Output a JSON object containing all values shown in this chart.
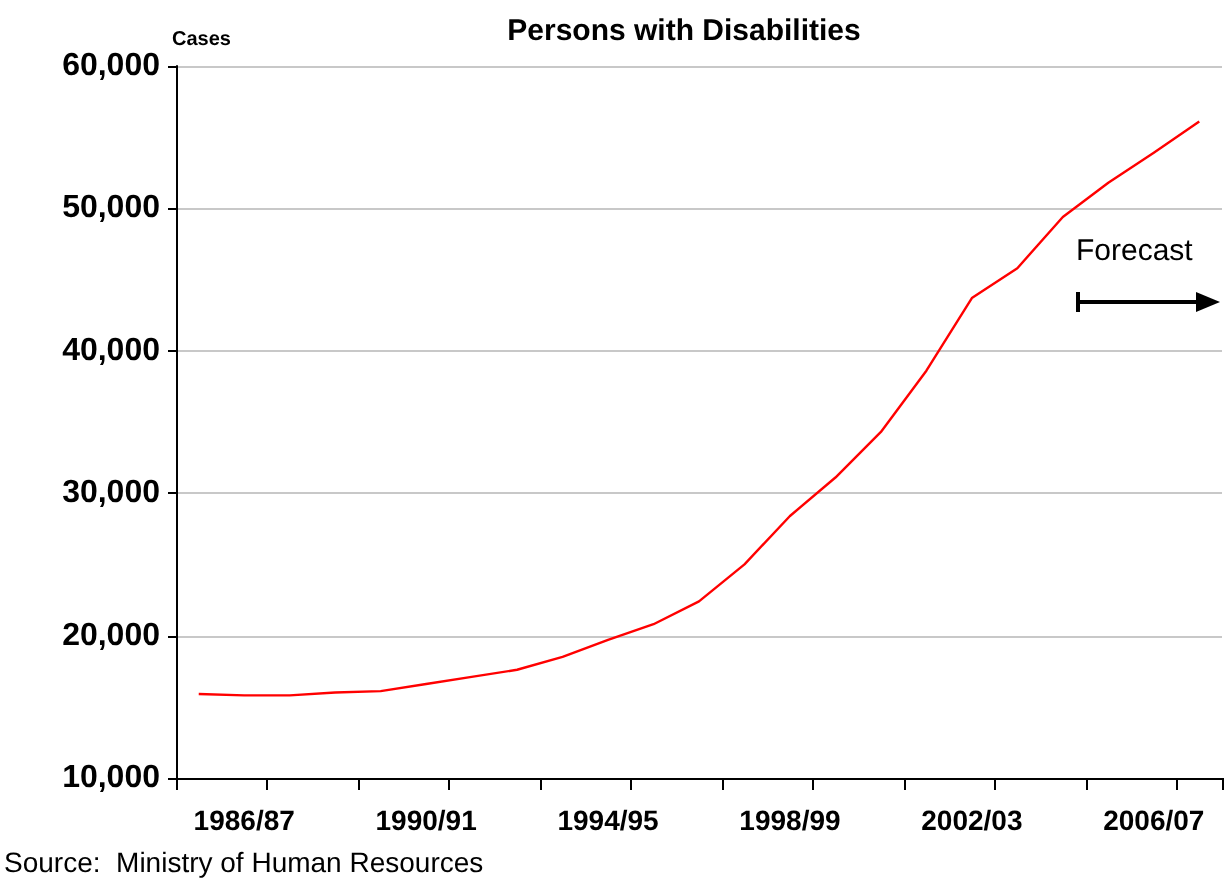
{
  "chart_data": {
    "type": "line",
    "title": "Persons with Disabilities",
    "ylabel": "Cases",
    "categories": [
      null,
      "1986/87",
      null,
      null,
      null,
      "1990/91",
      null,
      null,
      null,
      "1994/95",
      null,
      null,
      null,
      "1998/99",
      null,
      null,
      null,
      "2002/03",
      null,
      null,
      null,
      "2006/07",
      null
    ],
    "series": [
      {
        "color": "#ff0000",
        "values": [
          15900,
          15800,
          15800,
          16000,
          16100,
          16600,
          17100,
          17600,
          18500,
          19700,
          20800,
          22400,
          25000,
          28400,
          31100,
          34300,
          38600,
          43700,
          45800,
          49400,
          51800,
          53900,
          56100
        ]
      }
    ],
    "ylim": [
      10000,
      60000
    ],
    "yticks": [
      {
        "value": 10000,
        "label": "10,000"
      },
      {
        "value": 20000,
        "label": "20,000"
      },
      {
        "value": 30000,
        "label": "30,000"
      },
      {
        "value": 40000,
        "label": "40,000"
      },
      {
        "value": 50000,
        "label": "50,000"
      },
      {
        "value": 60000,
        "label": "60,000"
      }
    ],
    "grid": "y",
    "marker": "none",
    "line_style": "solid",
    "annotations": [
      "Forecast",
      "Source:  Ministry of Human Resources"
    ]
  }
}
